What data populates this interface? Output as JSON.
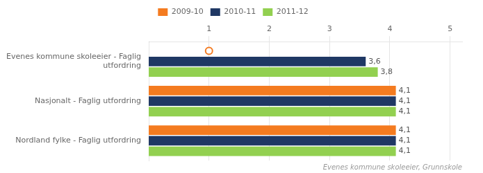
{
  "chart_data": {
    "type": "bar",
    "orientation": "horizontal",
    "categories": [
      "Evenes kommune skoleeier - Faglig\nutfordring",
      "Nasjonalt - Faglig utfordring",
      "Nordland fylke - Faglig utfordring"
    ],
    "series": [
      {
        "name": "2009-10",
        "color": "#F47B20",
        "values": [
          0.0,
          4.1,
          4.1
        ],
        "value_labels": [
          null,
          "4,1",
          "4,1"
        ],
        "marker": "circle",
        "marker_values": [
          1.0,
          null,
          null
        ]
      },
      {
        "name": "2010-11",
        "color": "#1F3864",
        "values": [
          3.6,
          4.1,
          4.1
        ],
        "value_labels": [
          "3,6",
          "4,1",
          "4,1"
        ]
      },
      {
        "name": "2011-12",
        "color": "#92D050",
        "values": [
          3.8,
          4.1,
          4.1
        ],
        "value_labels": [
          "3,8",
          "4,1",
          "4,1"
        ]
      }
    ],
    "xlim": [
      0,
      5.2
    ],
    "xticks": [
      1,
      2,
      3,
      4,
      5
    ],
    "grid": true,
    "legend": "top",
    "data_labels": true,
    "footer": "Evenes kommune skoleeier, Grunnskole"
  }
}
